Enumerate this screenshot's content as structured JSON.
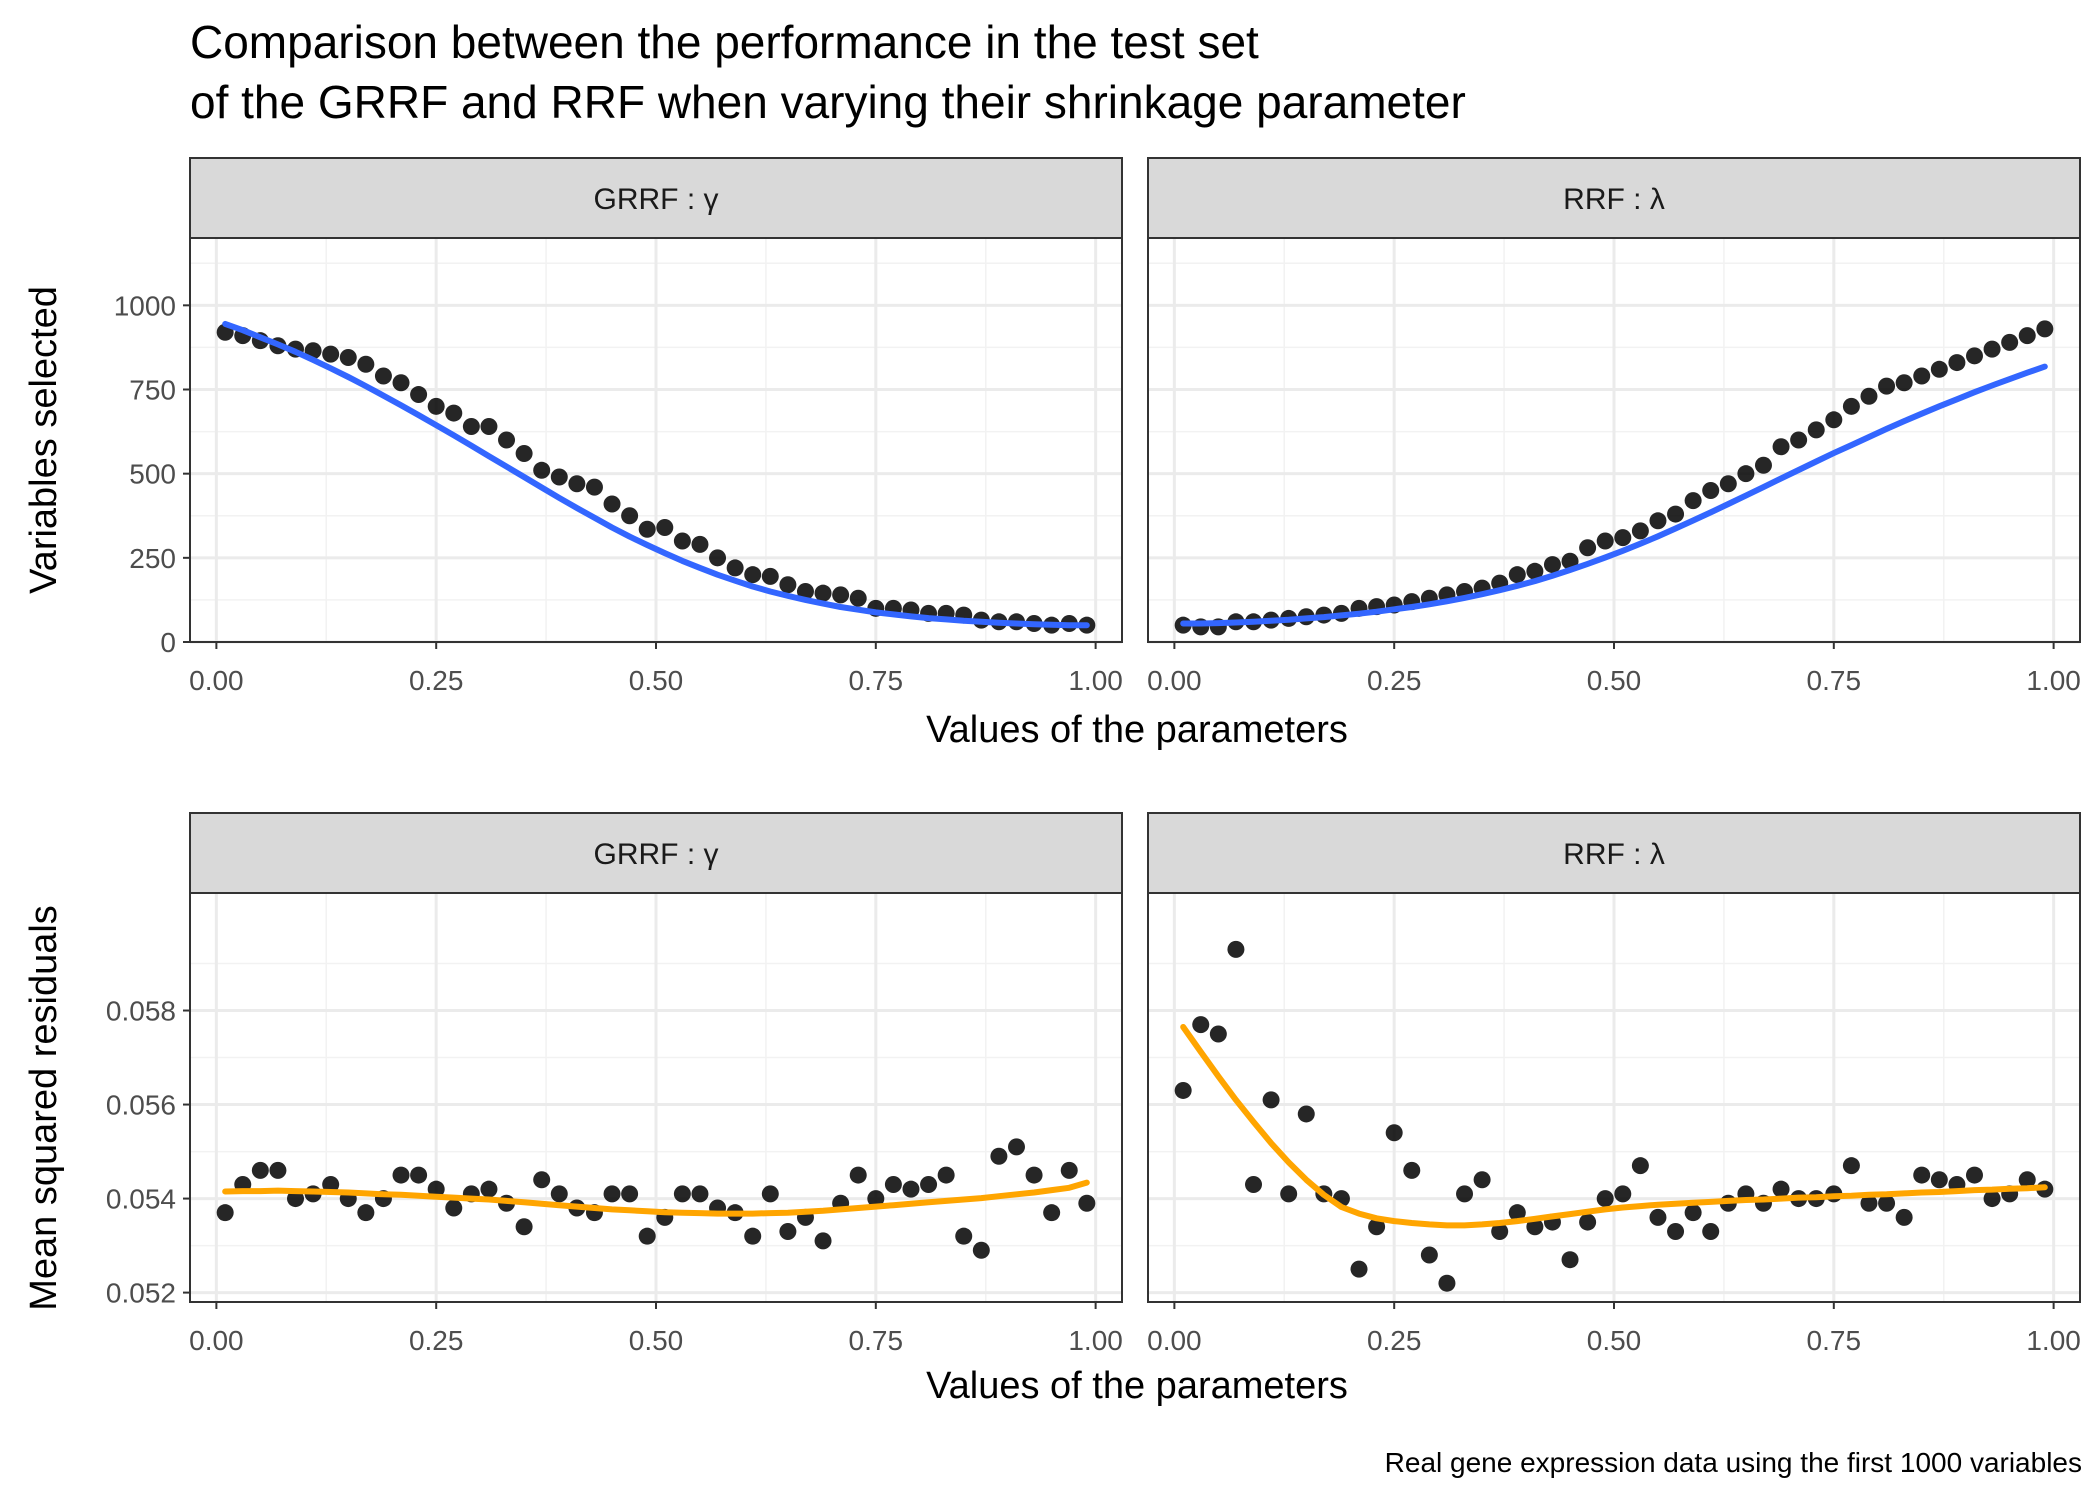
{
  "chart_data": {
    "type": "scatter",
    "title": [
      "Comparison between the performance in the test set",
      "of the GRRF and RRF when varying their shrinkage parameter"
    ],
    "caption": "Real gene expression data using the first 1000 variables",
    "xlabel": "Values of the parameters",
    "x_ticks": [
      "0.00",
      "0.25",
      "0.50",
      "0.75",
      "1.00"
    ],
    "xlim": [
      -0.03,
      1.03
    ],
    "rows": [
      {
        "ylabel": "Variables selected",
        "ylim": [
          0,
          1200
        ],
        "y_ticks": [
          0,
          250,
          500,
          750,
          1000
        ],
        "y_tick_labels": [
          "0",
          "250",
          "500",
          "750",
          "1000"
        ],
        "smooth_color": "#3366FF",
        "panels": [
          {
            "strip": "GRRF : γ",
            "x": [
              0.01,
              0.03,
              0.05,
              0.07,
              0.09,
              0.11,
              0.13,
              0.15,
              0.17,
              0.19,
              0.21,
              0.23,
              0.25,
              0.27,
              0.29,
              0.31,
              0.33,
              0.35,
              0.37,
              0.39,
              0.41,
              0.43,
              0.45,
              0.47,
              0.49,
              0.51,
              0.53,
              0.55,
              0.57,
              0.59,
              0.61,
              0.63,
              0.65,
              0.67,
              0.69,
              0.71,
              0.73,
              0.75,
              0.77,
              0.79,
              0.81,
              0.83,
              0.85,
              0.87,
              0.89,
              0.91,
              0.93,
              0.95,
              0.97,
              0.99
            ],
            "y": [
              920,
              910,
              895,
              880,
              870,
              865,
              855,
              845,
              825,
              790,
              770,
              735,
              700,
              680,
              640,
              640,
              600,
              560,
              510,
              490,
              470,
              460,
              410,
              375,
              335,
              340,
              300,
              290,
              250,
              220,
              200,
              195,
              170,
              150,
              145,
              140,
              130,
              100,
              100,
              95,
              85,
              85,
              80,
              65,
              60,
              60,
              55,
              50,
              55,
              50
            ],
            "smooth_y": [
              945,
              926,
              905,
              884,
              862,
              838,
              813,
              787,
              760,
              732,
              703,
              674,
              644,
              614,
              583,
              552,
              521,
              490,
              459,
              428,
              398,
              369,
              340,
              313,
              288,
              264,
              241,
              220,
              200,
              182,
              165,
              150,
              137,
              125,
              114,
              104,
              96,
              88,
              82,
              76,
              71,
              67,
              63,
              60,
              57,
              55,
              53,
              51,
              50,
              50
            ]
          },
          {
            "strip": "RRF : λ",
            "x": [
              0.01,
              0.03,
              0.05,
              0.07,
              0.09,
              0.11,
              0.13,
              0.15,
              0.17,
              0.19,
              0.21,
              0.23,
              0.25,
              0.27,
              0.29,
              0.31,
              0.33,
              0.35,
              0.37,
              0.39,
              0.41,
              0.43,
              0.45,
              0.47,
              0.49,
              0.51,
              0.53,
              0.55,
              0.57,
              0.59,
              0.61,
              0.63,
              0.65,
              0.67,
              0.69,
              0.71,
              0.73,
              0.75,
              0.77,
              0.79,
              0.81,
              0.83,
              0.85,
              0.87,
              0.89,
              0.91,
              0.93,
              0.95,
              0.97,
              0.99
            ],
            "y": [
              50,
              45,
              45,
              60,
              60,
              65,
              70,
              75,
              80,
              85,
              100,
              105,
              110,
              120,
              130,
              140,
              150,
              160,
              175,
              200,
              210,
              230,
              240,
              280,
              300,
              310,
              330,
              360,
              380,
              420,
              450,
              470,
              500,
              525,
              580,
              600,
              630,
              660,
              700,
              730,
              760,
              770,
              790,
              810,
              830,
              850,
              870,
              890,
              910,
              930
            ],
            "smooth_y": [
              55,
              55,
              56,
              58,
              60,
              63,
              66,
              70,
              74,
              79,
              84,
              90,
              97,
              104,
              112,
              121,
              131,
              142,
              154,
              167,
              181,
              197,
              214,
              232,
              251,
              271,
              292,
              314,
              337,
              361,
              385,
              410,
              435,
              460,
              486,
              511,
              536,
              561,
              585,
              609,
              633,
              656,
              678,
              700,
              721,
              742,
              762,
              781,
              800,
              818
            ]
          }
        ]
      },
      {
        "ylabel": "Mean squared residuals",
        "ylim": [
          0.0518,
          0.0605
        ],
        "y_ticks": [
          0.052,
          0.054,
          0.056,
          0.058
        ],
        "y_tick_labels": [
          "0.052",
          "0.054",
          "0.056",
          "0.058"
        ],
        "smooth_color": "#FFA500",
        "panels": [
          {
            "strip": "GRRF : γ",
            "x": [
              0.01,
              0.03,
              0.05,
              0.07,
              0.09,
              0.11,
              0.13,
              0.15,
              0.17,
              0.19,
              0.21,
              0.23,
              0.25,
              0.27,
              0.29,
              0.31,
              0.33,
              0.35,
              0.37,
              0.39,
              0.41,
              0.43,
              0.45,
              0.47,
              0.49,
              0.51,
              0.53,
              0.55,
              0.57,
              0.59,
              0.61,
              0.63,
              0.65,
              0.67,
              0.69,
              0.71,
              0.73,
              0.75,
              0.77,
              0.79,
              0.81,
              0.83,
              0.85,
              0.87,
              0.89,
              0.91,
              0.93,
              0.95,
              0.97,
              0.99
            ],
            "y": [
              0.0537,
              0.0543,
              0.0546,
              0.0546,
              0.054,
              0.0541,
              0.0543,
              0.054,
              0.0537,
              0.054,
              0.0545,
              0.0545,
              0.0542,
              0.0538,
              0.0541,
              0.0542,
              0.0539,
              0.0534,
              0.0544,
              0.0541,
              0.0538,
              0.0537,
              0.0541,
              0.0541,
              0.0532,
              0.0536,
              0.0541,
              0.0541,
              0.0538,
              0.0537,
              0.0532,
              0.0541,
              0.0533,
              0.0536,
              0.0531,
              0.0539,
              0.0545,
              0.054,
              0.0543,
              0.0542,
              0.0543,
              0.0545,
              0.0532,
              0.0529,
              0.0549,
              0.0551,
              0.0545,
              0.0537,
              0.0546,
              0.0539
            ],
            "smooth_y": [
              0.05415,
              0.05416,
              0.05416,
              0.05417,
              0.05416,
              0.05415,
              0.05414,
              0.05413,
              0.05411,
              0.05409,
              0.05408,
              0.05406,
              0.05404,
              0.05402,
              0.054,
              0.05398,
              0.05395,
              0.05392,
              0.05389,
              0.05386,
              0.05383,
              0.0538,
              0.05377,
              0.05375,
              0.05373,
              0.05371,
              0.0537,
              0.05369,
              0.05368,
              0.05368,
              0.05368,
              0.05369,
              0.0537,
              0.05372,
              0.05374,
              0.05377,
              0.0538,
              0.05383,
              0.05386,
              0.05389,
              0.05392,
              0.05395,
              0.05398,
              0.05401,
              0.05405,
              0.05409,
              0.05413,
              0.05418,
              0.05423,
              0.05434
            ]
          },
          {
            "strip": "RRF : λ",
            "x": [
              0.01,
              0.03,
              0.05,
              0.07,
              0.09,
              0.11,
              0.13,
              0.15,
              0.17,
              0.19,
              0.21,
              0.23,
              0.25,
              0.27,
              0.29,
              0.31,
              0.33,
              0.35,
              0.37,
              0.39,
              0.41,
              0.43,
              0.45,
              0.47,
              0.49,
              0.51,
              0.53,
              0.55,
              0.57,
              0.59,
              0.61,
              0.63,
              0.65,
              0.67,
              0.69,
              0.71,
              0.73,
              0.75,
              0.77,
              0.79,
              0.81,
              0.83,
              0.85,
              0.87,
              0.89,
              0.91,
              0.93,
              0.95,
              0.97,
              0.99
            ],
            "y": [
              0.0563,
              0.0577,
              0.0575,
              0.0593,
              0.0543,
              0.0561,
              0.0541,
              0.0558,
              0.0541,
              0.054,
              0.0525,
              0.0534,
              0.0554,
              0.0546,
              0.0528,
              0.0522,
              0.0541,
              0.0544,
              0.0533,
              0.0537,
              0.0534,
              0.0535,
              0.0527,
              0.0535,
              0.054,
              0.0541,
              0.0547,
              0.0536,
              0.0533,
              0.0537,
              0.0533,
              0.0539,
              0.0541,
              0.0539,
              0.0542,
              0.054,
              0.054,
              0.0541,
              0.0547,
              0.0539,
              0.0539,
              0.0536,
              0.0545,
              0.0544,
              0.0543,
              0.0545,
              0.054,
              0.0541,
              0.0544,
              0.0542
            ],
            "smooth_y": [
              0.05765,
              0.05712,
              0.0566,
              0.0561,
              0.05563,
              0.05518,
              0.05477,
              0.0544,
              0.05408,
              0.05382,
              0.05368,
              0.05358,
              0.05352,
              0.05348,
              0.05345,
              0.05343,
              0.05343,
              0.05345,
              0.05348,
              0.05352,
              0.05357,
              0.05362,
              0.05367,
              0.05372,
              0.05377,
              0.05381,
              0.05384,
              0.05387,
              0.05389,
              0.05391,
              0.05393,
              0.05395,
              0.05397,
              0.05398,
              0.054,
              0.05402,
              0.05403,
              0.05405,
              0.05406,
              0.05408,
              0.05409,
              0.05411,
              0.05413,
              0.05414,
              0.05416,
              0.05418,
              0.05419,
              0.05421,
              0.05422,
              0.05424
            ]
          }
        ]
      }
    ]
  }
}
